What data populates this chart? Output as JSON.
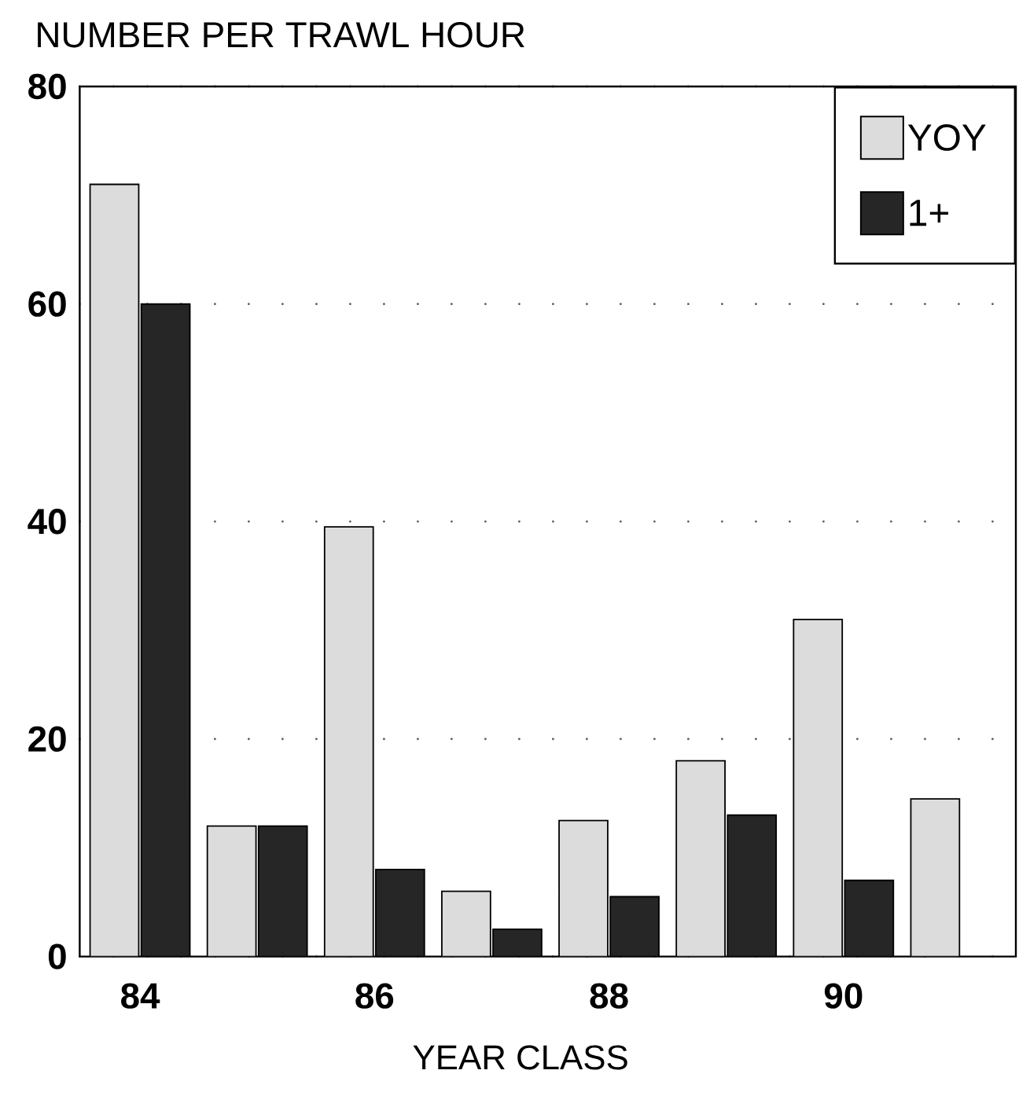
{
  "chart_data": {
    "type": "bar",
    "ylabel": "NUMBER PER TRAWL HOUR",
    "xlabel": "YEAR CLASS",
    "categories": [
      "84",
      null,
      "86",
      null,
      "88",
      null,
      "90",
      null
    ],
    "series": [
      {
        "name": "YOY",
        "color": "#dcdcdc",
        "values": [
          71,
          12,
          39.5,
          6,
          12.5,
          18,
          31,
          14.5
        ]
      },
      {
        "name": "1+",
        "color": "#262626",
        "values": [
          60,
          12,
          8,
          2.5,
          5.5,
          13,
          7,
          null
        ]
      }
    ],
    "ylim": [
      0,
      80
    ],
    "yticks": [
      0,
      20,
      40,
      60,
      80
    ],
    "grid": "y",
    "legend": "top right"
  }
}
